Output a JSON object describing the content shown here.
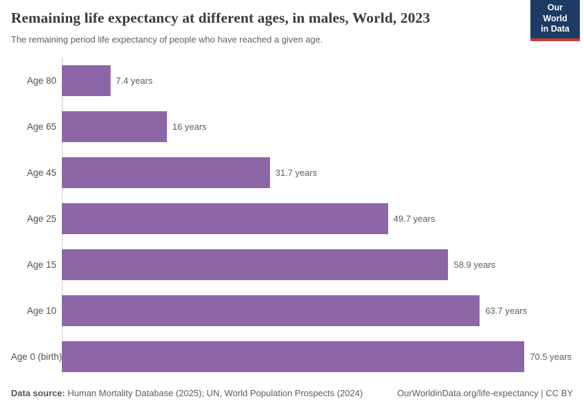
{
  "header": {
    "title": "Remaining life expectancy at different ages, in males, World, 2023",
    "subtitle": "The remaining period life expectancy of people who have reached a given age.",
    "logo": {
      "line1": "Our World",
      "line2": "in Data",
      "bg_color": "#1d3c63",
      "accent_color": "#d13832"
    }
  },
  "chart_data": {
    "type": "bar",
    "orientation": "horizontal",
    "title": "Remaining life expectancy at different ages, in males, World, 2023",
    "categories": [
      "Age 80",
      "Age 65",
      "Age 45",
      "Age 25",
      "Age 15",
      "Age 10",
      "Age 0 (birth)"
    ],
    "values": [
      7.4,
      16,
      31.7,
      49.7,
      58.9,
      63.7,
      70.5
    ],
    "value_labels": [
      "7.4 years",
      "16 years",
      "31.7 years",
      "49.7 years",
      "58.9 years",
      "63.7 years",
      "70.5 years"
    ],
    "unit": "years",
    "bar_color": "#8d66a7",
    "axis_color": "#cccccc",
    "xlim": [
      0,
      73
    ],
    "grid": false,
    "legend": "none"
  },
  "footer": {
    "source_label": "Data source:",
    "source_text": " Human Mortality Database (2025); UN, World Population Prospects (2024)",
    "attribution": "OurWorldinData.org/life-expectancy | CC BY"
  }
}
